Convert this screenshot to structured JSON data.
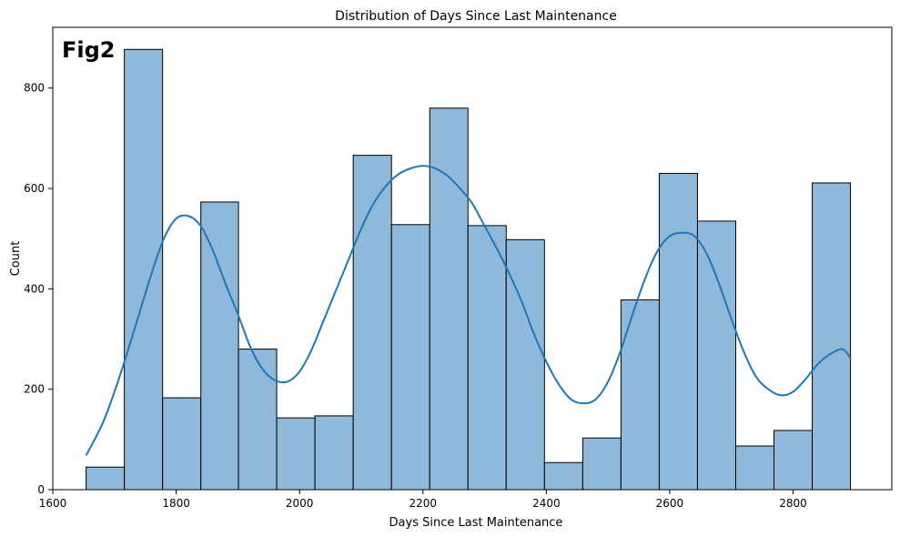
{
  "figure_label": "Fig2",
  "chart_data": {
    "type": "bar",
    "subtype": "histogram_with_kde",
    "title": "Distribution of Days Since Last Maintenance",
    "xlabel": "Days Since Last Maintenance",
    "ylabel": "Count",
    "xlim": [
      1600,
      2960
    ],
    "ylim": [
      0,
      921
    ],
    "x_ticks": [
      1600,
      1800,
      2000,
      2200,
      2400,
      2600,
      2800
    ],
    "y_ticks": [
      0,
      200,
      400,
      600,
      800
    ],
    "grid": false,
    "bar_color": "#8fb9da",
    "bar_edge_color": "#000000",
    "line_color": "#1f77b4",
    "bins": [
      {
        "start": 1654,
        "end": 1716,
        "count": 45
      },
      {
        "start": 1716,
        "end": 1778,
        "count": 877
      },
      {
        "start": 1778,
        "end": 1840,
        "count": 183
      },
      {
        "start": 1840,
        "end": 1901,
        "count": 573
      },
      {
        "start": 1901,
        "end": 1963,
        "count": 280
      },
      {
        "start": 1963,
        "end": 2025,
        "count": 143
      },
      {
        "start": 2025,
        "end": 2087,
        "count": 147
      },
      {
        "start": 2087,
        "end": 2149,
        "count": 666
      },
      {
        "start": 2149,
        "end": 2211,
        "count": 528
      },
      {
        "start": 2211,
        "end": 2273,
        "count": 760
      },
      {
        "start": 2273,
        "end": 2335,
        "count": 526
      },
      {
        "start": 2335,
        "end": 2397,
        "count": 498
      },
      {
        "start": 2397,
        "end": 2459,
        "count": 54
      },
      {
        "start": 2459,
        "end": 2521,
        "count": 103
      },
      {
        "start": 2521,
        "end": 2583,
        "count": 378
      },
      {
        "start": 2583,
        "end": 2645,
        "count": 630
      },
      {
        "start": 2645,
        "end": 2707,
        "count": 535
      },
      {
        "start": 2707,
        "end": 2769,
        "count": 87
      },
      {
        "start": 2769,
        "end": 2831,
        "count": 118
      },
      {
        "start": 2831,
        "end": 2893,
        "count": 611
      }
    ],
    "kde": {
      "x": [
        1654,
        1680,
        1700,
        1720,
        1740,
        1760,
        1780,
        1800,
        1820,
        1840,
        1860,
        1880,
        1900,
        1920,
        1940,
        1960,
        1980,
        2000,
        2020,
        2040,
        2060,
        2080,
        2100,
        2120,
        2140,
        2160,
        2180,
        2200,
        2220,
        2240,
        2260,
        2280,
        2300,
        2320,
        2340,
        2360,
        2380,
        2400,
        2420,
        2440,
        2460,
        2480,
        2500,
        2520,
        2540,
        2560,
        2580,
        2600,
        2620,
        2640,
        2660,
        2680,
        2700,
        2720,
        2740,
        2760,
        2780,
        2800,
        2820,
        2840,
        2860,
        2880,
        2893
      ],
      "y": [
        68,
        130,
        195,
        270,
        350,
        430,
        500,
        540,
        545,
        525,
        475,
        410,
        350,
        285,
        240,
        218,
        215,
        235,
        280,
        340,
        400,
        460,
        520,
        570,
        605,
        628,
        640,
        645,
        640,
        625,
        600,
        570,
        525,
        480,
        430,
        375,
        310,
        255,
        210,
        180,
        172,
        180,
        215,
        275,
        350,
        420,
        475,
        505,
        512,
        505,
        470,
        410,
        340,
        275,
        225,
        200,
        188,
        195,
        220,
        250,
        270,
        280,
        262
      ]
    }
  }
}
